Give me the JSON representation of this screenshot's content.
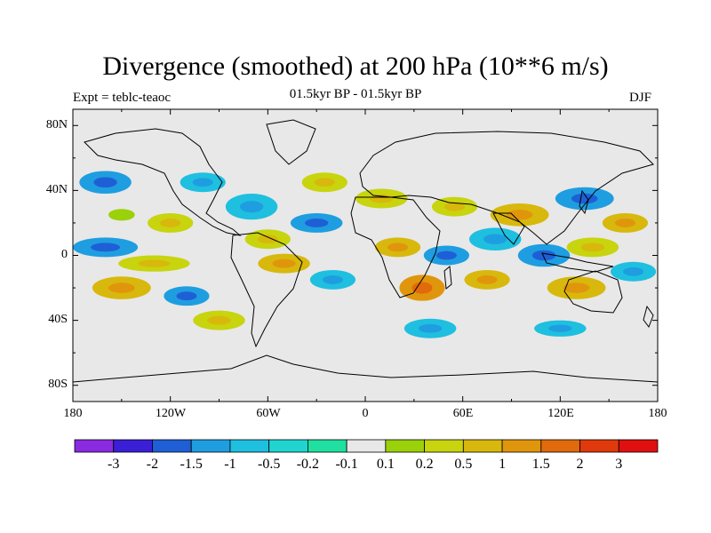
{
  "title": "Divergence (smoothed) at 200 hPa (10**6 m/s)",
  "subtitle": "01.5kyr BP - 01.5kyr BP",
  "left_label": "Expt = teblc-teaoc",
  "right_label": "DJF",
  "lat_labels": [
    "80N",
    "40N",
    "0",
    "40S",
    "80S"
  ],
  "lon_labels": [
    "180",
    "120W",
    "60W",
    "0",
    "60E",
    "120E",
    "180"
  ],
  "colorbar": {
    "colors": [
      "#8a2be2",
      "#3a1fd6",
      "#1f5fd6",
      "#1e9ee0",
      "#1fbfe0",
      "#20d5d0",
      "#1fe0a0",
      "#e8e8e8",
      "#9bd10a",
      "#c8d40e",
      "#d8b80c",
      "#e0960c",
      "#e06a0c",
      "#e03a0c",
      "#e01010"
    ],
    "labels": [
      "-3",
      "-2",
      "-1.5",
      "-1",
      "-0.5",
      "-0.2",
      "-0.1",
      "0.1",
      "0.2",
      "0.5",
      "1",
      "1.5",
      "2",
      "3"
    ]
  },
  "map": {
    "background": "#e8e8e8",
    "blobs": [
      {
        "lon": -150,
        "lat": 25,
        "rx": 18,
        "ry": 8,
        "c": 7
      },
      {
        "lon": -120,
        "lat": 20,
        "rx": 14,
        "ry": 6,
        "c": 9
      },
      {
        "lon": -160,
        "lat": 5,
        "rx": 20,
        "ry": 6,
        "c": 3
      },
      {
        "lon": -130,
        "lat": -5,
        "rx": 22,
        "ry": 5,
        "c": 9
      },
      {
        "lon": -150,
        "lat": -20,
        "rx": 18,
        "ry": 7,
        "c": 10
      },
      {
        "lon": -110,
        "lat": -25,
        "rx": 14,
        "ry": 6,
        "c": 3
      },
      {
        "lon": -160,
        "lat": 45,
        "rx": 16,
        "ry": 7,
        "c": 3
      },
      {
        "lon": -100,
        "lat": 45,
        "rx": 14,
        "ry": 6,
        "c": 4
      },
      {
        "lon": -70,
        "lat": 30,
        "rx": 16,
        "ry": 8,
        "c": 4
      },
      {
        "lon": -60,
        "lat": 10,
        "rx": 14,
        "ry": 6,
        "c": 9
      },
      {
        "lon": -50,
        "lat": -5,
        "rx": 16,
        "ry": 6,
        "c": 10
      },
      {
        "lon": -30,
        "lat": 20,
        "rx": 16,
        "ry": 6,
        "c": 3
      },
      {
        "lon": -25,
        "lat": 45,
        "rx": 14,
        "ry": 6,
        "c": 9
      },
      {
        "lon": -20,
        "lat": -15,
        "rx": 14,
        "ry": 6,
        "c": 4
      },
      {
        "lon": 10,
        "lat": 35,
        "rx": 16,
        "ry": 6,
        "c": 9
      },
      {
        "lon": 20,
        "lat": 5,
        "rx": 14,
        "ry": 6,
        "c": 10
      },
      {
        "lon": 35,
        "lat": -20,
        "rx": 14,
        "ry": 8,
        "c": 11
      },
      {
        "lon": 55,
        "lat": 30,
        "rx": 14,
        "ry": 6,
        "c": 9
      },
      {
        "lon": 50,
        "lat": 0,
        "rx": 14,
        "ry": 6,
        "c": 3
      },
      {
        "lon": 80,
        "lat": 10,
        "rx": 16,
        "ry": 7,
        "c": 4
      },
      {
        "lon": 95,
        "lat": 25,
        "rx": 18,
        "ry": 7,
        "c": 10
      },
      {
        "lon": 75,
        "lat": -15,
        "rx": 14,
        "ry": 6,
        "c": 10
      },
      {
        "lon": 110,
        "lat": 0,
        "rx": 16,
        "ry": 7,
        "c": 3
      },
      {
        "lon": 135,
        "lat": 35,
        "rx": 18,
        "ry": 7,
        "c": 3
      },
      {
        "lon": 140,
        "lat": 5,
        "rx": 16,
        "ry": 6,
        "c": 9
      },
      {
        "lon": 130,
        "lat": -20,
        "rx": 18,
        "ry": 7,
        "c": 10
      },
      {
        "lon": 165,
        "lat": -10,
        "rx": 14,
        "ry": 6,
        "c": 4
      },
      {
        "lon": 160,
        "lat": 20,
        "rx": 14,
        "ry": 6,
        "c": 10
      },
      {
        "lon": -90,
        "lat": -40,
        "rx": 16,
        "ry": 6,
        "c": 9
      },
      {
        "lon": 40,
        "lat": -45,
        "rx": 16,
        "ry": 6,
        "c": 4
      },
      {
        "lon": 120,
        "lat": -45,
        "rx": 16,
        "ry": 5,
        "c": 4
      }
    ]
  }
}
